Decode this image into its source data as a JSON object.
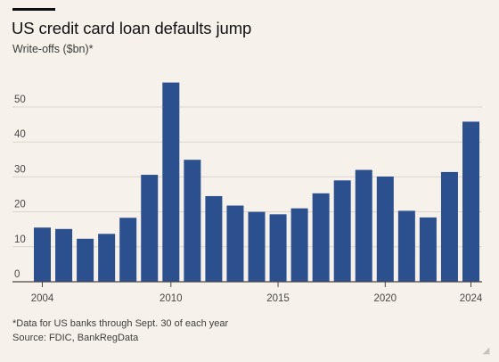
{
  "header": {
    "title": "US credit card loan defaults jump",
    "subtitle": "Write-offs ($bn)*"
  },
  "footer": {
    "note": "*Data for US banks through Sept. 30 of each year",
    "source": "Source: FDIC, BankRegData"
  },
  "colors": {
    "bar": "#2c4f8e",
    "grid": "#dcd5cd",
    "axis": "#4a4744",
    "background": "#f6f1eb"
  },
  "chart_data": {
    "type": "bar",
    "title": "US credit card loan defaults jump",
    "subtitle": "Write-offs ($bn)*",
    "ylabel": "Write-offs ($bn)*",
    "xlabel": "",
    "categories": [
      "2004",
      "2005",
      "2006",
      "2007",
      "2008",
      "2009",
      "2010",
      "2011",
      "2012",
      "2013",
      "2014",
      "2015",
      "2016",
      "2017",
      "2018",
      "2019",
      "2020",
      "2021",
      "2022",
      "2023",
      "2024"
    ],
    "values": [
      15.5,
      15.1,
      12.3,
      13.7,
      18.3,
      30.6,
      57.0,
      34.9,
      24.5,
      21.8,
      20.0,
      19.3,
      21.0,
      25.3,
      29.0,
      32.0,
      30.1,
      20.3,
      18.4,
      31.4,
      45.8
    ],
    "yticks": [
      0,
      10,
      20,
      30,
      40,
      50
    ],
    "xticks": [
      "2004",
      "2010",
      "2015",
      "2020",
      "2024"
    ],
    "ylim": [
      0,
      58
    ],
    "grid": true,
    "legend": "none"
  }
}
